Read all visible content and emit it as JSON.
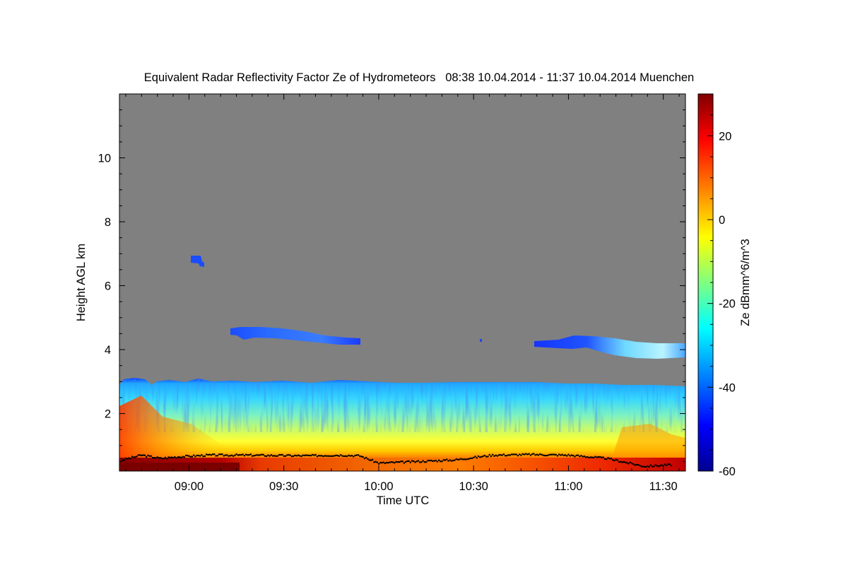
{
  "chart_data": {
    "type": "heatmap",
    "title": "Equivalent Radar Reflectivity Factor Ze of Hydrometeors   08:38 10.04.2014 - 11:37 10.04.2014 Muenchen",
    "xlabel": "Time UTC",
    "ylabel": "Height AGL km",
    "colorbar_label": "Ze dBmm^6/m^3",
    "x_range": [
      "08:38",
      "11:37"
    ],
    "x_ticks": [
      "09:00",
      "09:30",
      "10:00",
      "10:30",
      "11:00",
      "11:30"
    ],
    "y_range": [
      0.2,
      12.0
    ],
    "y_ticks": [
      "2",
      "4",
      "6",
      "8",
      "10"
    ],
    "colorbar_range": [
      -60,
      30
    ],
    "colorbar_ticks": [
      "20",
      "0",
      "-20",
      "-40",
      "-60"
    ],
    "colormap": [
      "#00008f",
      "#0000ff",
      "#00ffff",
      "#ffff00",
      "#ff0000",
      "#800000"
    ],
    "background_no_echo": "#808080",
    "features": [
      {
        "name": "boundary-layer echo",
        "height_km": [
          0.2,
          3.0
        ],
        "time": [
          "08:38",
          "11:37"
        ],
        "ze_dbz_range": [
          -45,
          30
        ]
      },
      {
        "name": "cloud layer near 4.4 km",
        "height_km": [
          4.2,
          4.65
        ],
        "time": [
          "09:12",
          "09:54"
        ],
        "ze_dbz_range": [
          -50,
          -35
        ]
      },
      {
        "name": "cloud layer near 4.1 km",
        "height_km": [
          3.75,
          4.45
        ],
        "time": [
          "10:51",
          "11:37"
        ],
        "ze_dbz_range": [
          -50,
          -25
        ]
      },
      {
        "name": "small echo near 6.8 km",
        "height_km": [
          6.6,
          6.9
        ],
        "time": [
          "08:59",
          "09:03"
        ],
        "ze_dbz_range": [
          -50,
          -40
        ]
      }
    ],
    "ceilometer_cloud_base_km": [
      [
        8.65,
        0.55
      ],
      [
        8.75,
        0.7
      ],
      [
        8.85,
        0.6
      ],
      [
        8.95,
        0.65
      ],
      [
        9.1,
        0.7
      ],
      [
        9.3,
        0.7
      ],
      [
        9.6,
        0.68
      ],
      [
        9.8,
        0.7
      ],
      [
        9.9,
        0.68
      ],
      [
        10.0,
        0.45
      ],
      [
        10.2,
        0.5
      ],
      [
        10.4,
        0.55
      ],
      [
        10.6,
        0.7
      ],
      [
        10.8,
        0.72
      ],
      [
        11.0,
        0.7
      ],
      [
        11.2,
        0.6
      ],
      [
        11.4,
        0.35
      ],
      [
        11.55,
        0.4
      ]
    ]
  }
}
